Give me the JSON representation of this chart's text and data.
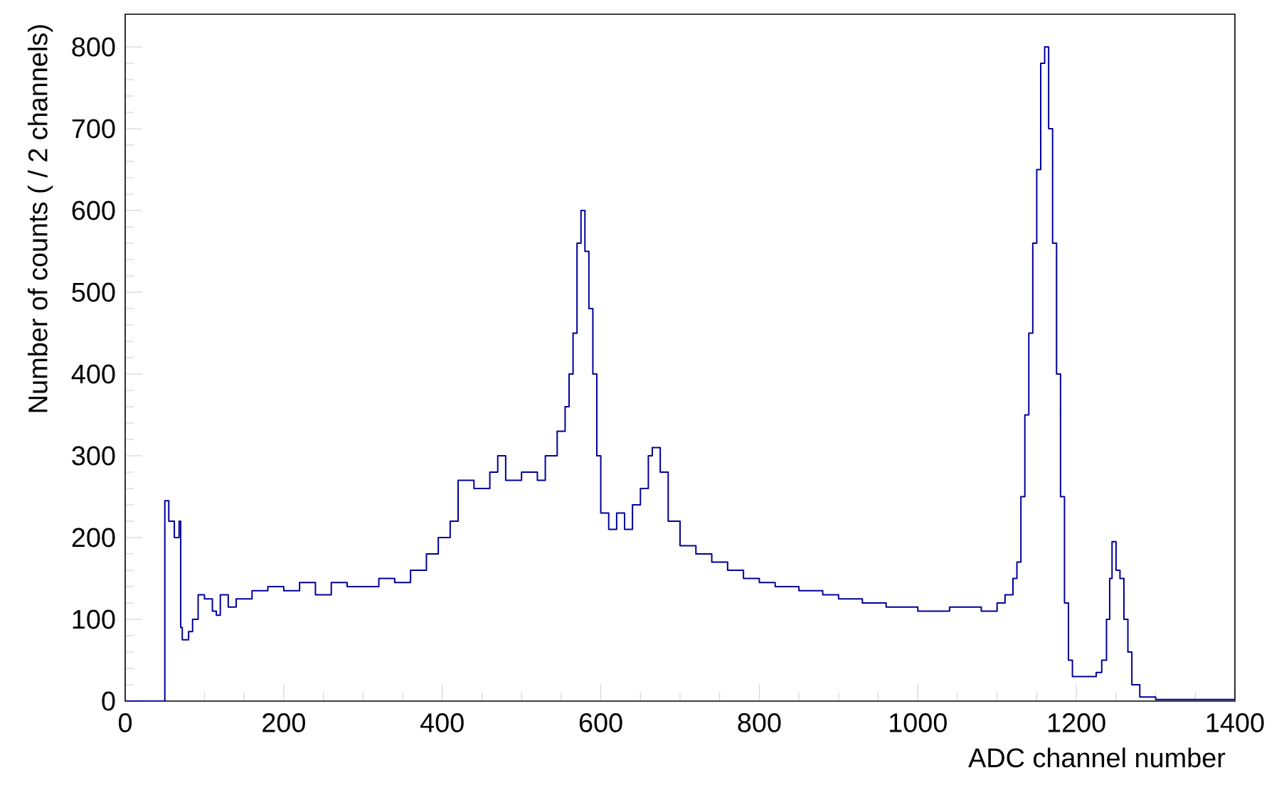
{
  "chart_data": {
    "type": "step",
    "xlabel": "ADC channel number",
    "ylabel": "Number of counts ( / 2 channels)",
    "xlim": [
      0,
      1400
    ],
    "ylim": [
      0,
      840
    ],
    "xticks": [
      0,
      200,
      400,
      600,
      800,
      1000,
      1200,
      1400
    ],
    "yticks": [
      0,
      100,
      200,
      300,
      400,
      500,
      600,
      700,
      800
    ],
    "grid": false,
    "marker": "none",
    "line_style": "solid",
    "color": "#00009a",
    "x": [
      0,
      50,
      55,
      62,
      68,
      70,
      72,
      80,
      85,
      92,
      100,
      110,
      115,
      120,
      130,
      140,
      160,
      180,
      200,
      220,
      240,
      260,
      280,
      300,
      320,
      340,
      360,
      380,
      395,
      410,
      420,
      440,
      460,
      470,
      480,
      500,
      520,
      530,
      545,
      555,
      560,
      565,
      570,
      575,
      580,
      585,
      590,
      595,
      600,
      610,
      620,
      630,
      640,
      650,
      660,
      665,
      675,
      685,
      700,
      720,
      740,
      760,
      780,
      800,
      820,
      850,
      880,
      900,
      930,
      960,
      1000,
      1040,
      1080,
      1100,
      1110,
      1120,
      1125,
      1130,
      1135,
      1140,
      1145,
      1150,
      1155,
      1160,
      1165,
      1170,
      1175,
      1180,
      1185,
      1190,
      1195,
      1210,
      1225,
      1232,
      1238,
      1242,
      1245,
      1250,
      1255,
      1260,
      1265,
      1270,
      1280,
      1300,
      1400
    ],
    "values": [
      0,
      245,
      220,
      200,
      220,
      90,
      75,
      85,
      100,
      130,
      125,
      110,
      105,
      130,
      115,
      125,
      135,
      140,
      135,
      145,
      130,
      145,
      140,
      140,
      150,
      145,
      160,
      180,
      200,
      220,
      270,
      260,
      280,
      300,
      270,
      280,
      270,
      300,
      330,
      360,
      400,
      450,
      560,
      600,
      550,
      480,
      400,
      300,
      230,
      210,
      230,
      210,
      240,
      260,
      300,
      310,
      280,
      220,
      190,
      180,
      170,
      160,
      150,
      145,
      140,
      135,
      130,
      125,
      120,
      115,
      110,
      115,
      110,
      120,
      130,
      150,
      170,
      250,
      350,
      450,
      560,
      650,
      780,
      800,
      700,
      560,
      400,
      250,
      120,
      50,
      30,
      30,
      35,
      50,
      100,
      150,
      195,
      160,
      150,
      100,
      60,
      20,
      5,
      2,
      0
    ]
  }
}
